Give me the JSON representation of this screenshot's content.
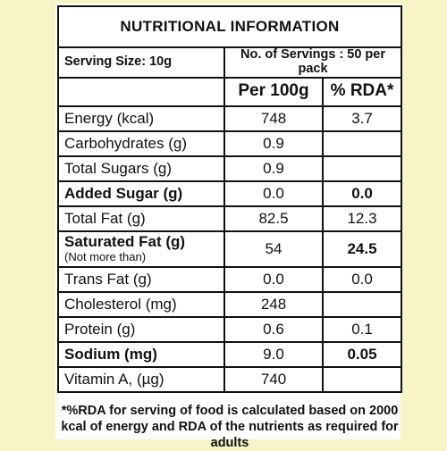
{
  "title": "NUTRITIONAL INFORMATION",
  "serving": {
    "size": "Serving Size: 10g",
    "servings": "No. of Servings : 50 per pack"
  },
  "headers": {
    "per100g": "Per 100g",
    "rda": "% RDA*"
  },
  "rows": [
    {
      "label": "Energy (kcal)",
      "value": "748",
      "rda": "3.7"
    },
    {
      "label": "Carbohydrates (g)",
      "value": "0.9",
      "rda": ""
    },
    {
      "label": "Total Sugars (g)",
      "value": "0.9",
      "rda": ""
    },
    {
      "label": "Added Sugar (g)",
      "value": "0.0",
      "rda": "0.0"
    },
    {
      "label": "Total Fat (g)",
      "value": "82.5",
      "rda": "12.3"
    },
    {
      "label": "Saturated Fat (g)",
      "sublabel": "(Not more than)",
      "value": "54",
      "rda": "24.5"
    },
    {
      "label": "Trans Fat (g)",
      "value": "0.0",
      "rda": "0.0"
    },
    {
      "label": "Cholesterol (mg)",
      "value": "248",
      "rda": ""
    },
    {
      "label": "Protein (g)",
      "value": "0.6",
      "rda": "0.1"
    },
    {
      "label": "Sodium (mg)",
      "value": "9.0",
      "rda": "0.05"
    },
    {
      "label": "Vitamin A, (µg)",
      "value": "740",
      "rda": ""
    }
  ],
  "footnote": "*%RDA for serving of food is calculated based on 2000 kcal of energy and RDA of the nutrients as required for adults"
}
